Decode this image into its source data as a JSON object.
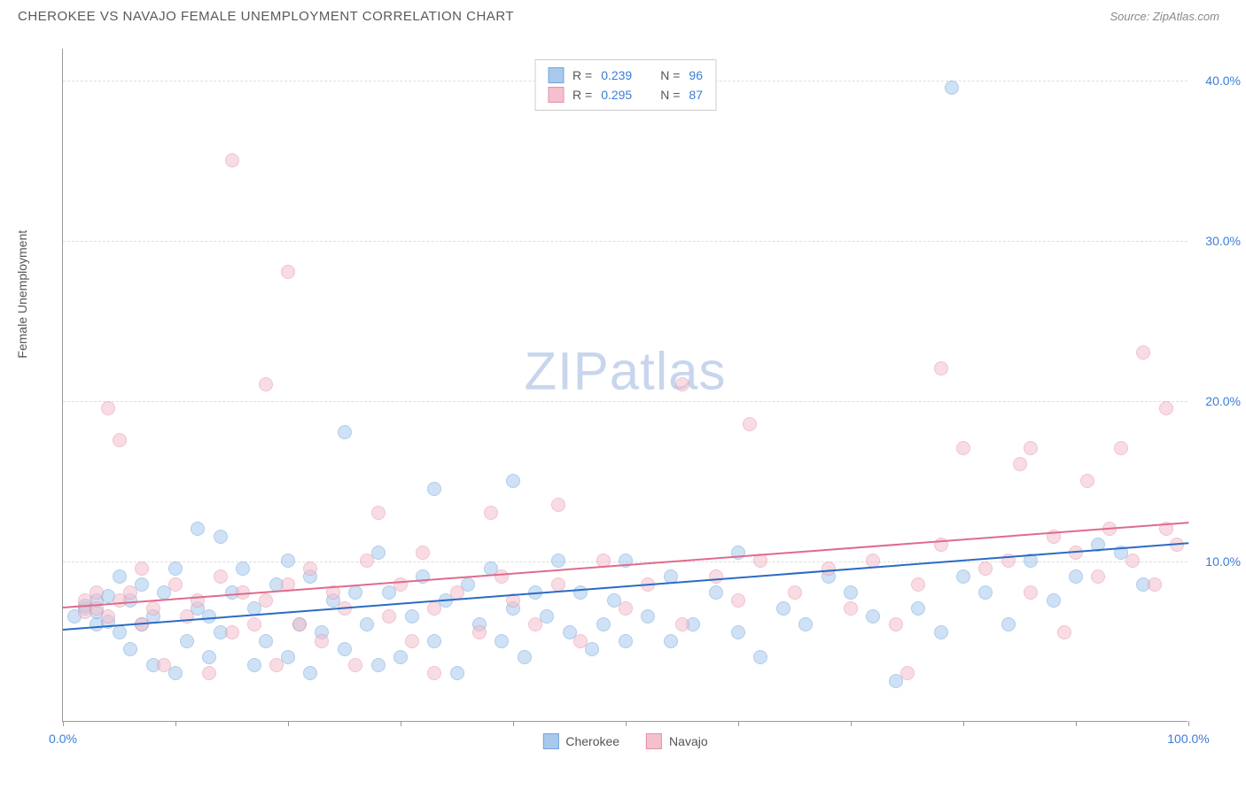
{
  "header": {
    "title": "CHEROKEE VS NAVAJO FEMALE UNEMPLOYMENT CORRELATION CHART",
    "source_prefix": "Source: ",
    "source": "ZipAtlas.com"
  },
  "chart": {
    "type": "scatter",
    "ylabel": "Female Unemployment",
    "watermark_bold": "ZIP",
    "watermark_light": "atlas",
    "background_color": "#ffffff",
    "grid_color": "#dddddd",
    "axis_color": "#999999",
    "xlim": [
      0,
      100
    ],
    "ylim": [
      0,
      42
    ],
    "xtick_positions": [
      0,
      10,
      20,
      30,
      40,
      50,
      60,
      70,
      80,
      90,
      100
    ],
    "xtick_labels": {
      "0": "0.0%",
      "100": "100.0%"
    },
    "yticks": [
      10,
      20,
      30,
      40
    ],
    "ytick_labels": [
      "10.0%",
      "20.0%",
      "30.0%",
      "40.0%"
    ],
    "marker_radius": 8,
    "marker_opacity": 0.55,
    "series": [
      {
        "name": "Cherokee",
        "fill_color": "#a8c9ec",
        "stroke_color": "#6fa5dd",
        "trend_color": "#2a6bc4",
        "R": "0.239",
        "N": "96",
        "trend": {
          "x1": 0,
          "y1": 5.8,
          "x2": 100,
          "y2": 11.2
        },
        "points": [
          [
            1,
            6.5
          ],
          [
            2,
            7
          ],
          [
            2,
            7.2
          ],
          [
            3,
            6
          ],
          [
            3,
            6.8
          ],
          [
            3,
            7.5
          ],
          [
            4,
            6.2
          ],
          [
            4,
            7.8
          ],
          [
            5,
            5.5
          ],
          [
            5,
            9
          ],
          [
            6,
            4.5
          ],
          [
            6,
            7.5
          ],
          [
            7,
            6
          ],
          [
            7,
            8.5
          ],
          [
            8,
            6.5
          ],
          [
            8,
            3.5
          ],
          [
            9,
            8
          ],
          [
            10,
            3
          ],
          [
            10,
            9.5
          ],
          [
            11,
            5
          ],
          [
            12,
            12
          ],
          [
            12,
            7
          ],
          [
            13,
            4
          ],
          [
            13,
            6.5
          ],
          [
            14,
            5.5
          ],
          [
            14,
            11.5
          ],
          [
            15,
            8
          ],
          [
            16,
            9.5
          ],
          [
            17,
            3.5
          ],
          [
            17,
            7
          ],
          [
            18,
            5
          ],
          [
            19,
            8.5
          ],
          [
            20,
            4
          ],
          [
            20,
            10
          ],
          [
            21,
            6
          ],
          [
            22,
            3
          ],
          [
            22,
            9
          ],
          [
            23,
            5.5
          ],
          [
            24,
            7.5
          ],
          [
            25,
            4.5
          ],
          [
            25,
            18
          ],
          [
            26,
            8
          ],
          [
            27,
            6
          ],
          [
            28,
            3.5
          ],
          [
            28,
            10.5
          ],
          [
            29,
            8
          ],
          [
            30,
            4
          ],
          [
            31,
            6.5
          ],
          [
            32,
            9
          ],
          [
            33,
            14.5
          ],
          [
            33,
            5
          ],
          [
            34,
            7.5
          ],
          [
            35,
            3
          ],
          [
            36,
            8.5
          ],
          [
            37,
            6
          ],
          [
            38,
            9.5
          ],
          [
            39,
            5
          ],
          [
            40,
            15
          ],
          [
            40,
            7
          ],
          [
            41,
            4
          ],
          [
            42,
            8
          ],
          [
            43,
            6.5
          ],
          [
            44,
            10
          ],
          [
            45,
            5.5
          ],
          [
            46,
            8
          ],
          [
            47,
            4.5
          ],
          [
            48,
            6
          ],
          [
            49,
            7.5
          ],
          [
            50,
            10
          ],
          [
            50,
            5
          ],
          [
            52,
            6.5
          ],
          [
            54,
            5
          ],
          [
            54,
            9
          ],
          [
            56,
            6
          ],
          [
            58,
            8
          ],
          [
            60,
            10.5
          ],
          [
            60,
            5.5
          ],
          [
            62,
            4
          ],
          [
            64,
            7
          ],
          [
            66,
            6
          ],
          [
            68,
            9
          ],
          [
            70,
            8
          ],
          [
            72,
            6.5
          ],
          [
            74,
            2.5
          ],
          [
            76,
            7
          ],
          [
            78,
            5.5
          ],
          [
            79,
            39.5
          ],
          [
            80,
            9
          ],
          [
            82,
            8
          ],
          [
            84,
            6
          ],
          [
            86,
            10
          ],
          [
            88,
            7.5
          ],
          [
            90,
            9
          ],
          [
            92,
            11
          ],
          [
            94,
            10.5
          ],
          [
            96,
            8.5
          ]
        ]
      },
      {
        "name": "Navajo",
        "fill_color": "#f4c0cd",
        "stroke_color": "#e88fa8",
        "trend_color": "#e06a8c",
        "R": "0.295",
        "N": "87",
        "trend": {
          "x1": 0,
          "y1": 7.2,
          "x2": 100,
          "y2": 12.5
        },
        "points": [
          [
            2,
            6.8
          ],
          [
            2,
            7.5
          ],
          [
            3,
            7
          ],
          [
            3,
            8
          ],
          [
            4,
            6.5
          ],
          [
            4,
            19.5
          ],
          [
            5,
            7.5
          ],
          [
            5,
            17.5
          ],
          [
            6,
            8
          ],
          [
            7,
            6
          ],
          [
            7,
            9.5
          ],
          [
            8,
            7
          ],
          [
            9,
            3.5
          ],
          [
            10,
            8.5
          ],
          [
            11,
            6.5
          ],
          [
            12,
            7.5
          ],
          [
            13,
            3
          ],
          [
            14,
            9
          ],
          [
            15,
            5.5
          ],
          [
            15,
            35
          ],
          [
            16,
            8
          ],
          [
            17,
            6
          ],
          [
            18,
            21
          ],
          [
            18,
            7.5
          ],
          [
            19,
            3.5
          ],
          [
            20,
            28
          ],
          [
            20,
            8.5
          ],
          [
            21,
            6
          ],
          [
            22,
            9.5
          ],
          [
            23,
            5
          ],
          [
            24,
            8
          ],
          [
            25,
            7
          ],
          [
            26,
            3.5
          ],
          [
            27,
            10
          ],
          [
            28,
            13
          ],
          [
            29,
            6.5
          ],
          [
            30,
            8.5
          ],
          [
            31,
            5
          ],
          [
            32,
            10.5
          ],
          [
            33,
            7
          ],
          [
            33,
            3
          ],
          [
            35,
            8
          ],
          [
            37,
            5.5
          ],
          [
            38,
            13
          ],
          [
            39,
            9
          ],
          [
            40,
            7.5
          ],
          [
            42,
            6
          ],
          [
            44,
            8.5
          ],
          [
            44,
            13.5
          ],
          [
            46,
            5
          ],
          [
            48,
            10
          ],
          [
            50,
            7
          ],
          [
            52,
            8.5
          ],
          [
            55,
            21
          ],
          [
            55,
            6
          ],
          [
            58,
            9
          ],
          [
            60,
            7.5
          ],
          [
            61,
            18.5
          ],
          [
            62,
            10
          ],
          [
            65,
            8
          ],
          [
            68,
            9.5
          ],
          [
            70,
            7
          ],
          [
            72,
            10
          ],
          [
            74,
            6
          ],
          [
            75,
            3
          ],
          [
            76,
            8.5
          ],
          [
            78,
            22
          ],
          [
            78,
            11
          ],
          [
            80,
            17
          ],
          [
            82,
            9.5
          ],
          [
            84,
            10
          ],
          [
            85,
            16
          ],
          [
            86,
            8
          ],
          [
            86,
            17
          ],
          [
            88,
            11.5
          ],
          [
            89,
            5.5
          ],
          [
            90,
            10.5
          ],
          [
            91,
            15
          ],
          [
            92,
            9
          ],
          [
            93,
            12
          ],
          [
            94,
            17
          ],
          [
            95,
            10
          ],
          [
            96,
            23
          ],
          [
            97,
            8.5
          ],
          [
            98,
            19.5
          ],
          [
            98,
            12
          ],
          [
            99,
            11
          ]
        ]
      }
    ]
  }
}
